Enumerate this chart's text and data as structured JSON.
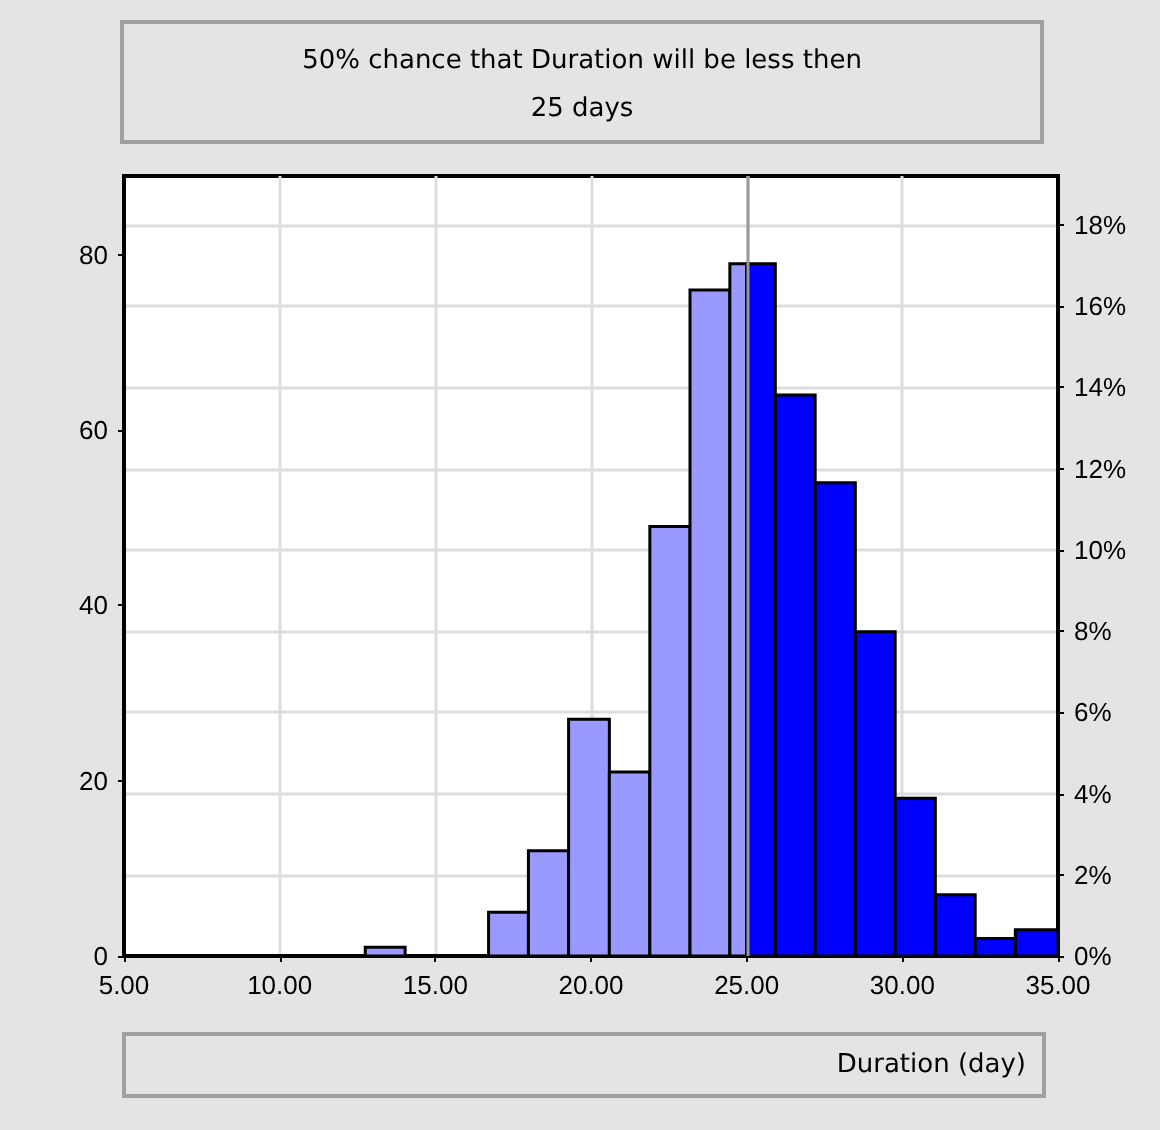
{
  "chart_data": {
    "type": "histogram",
    "title": "50% chance that Duration will be less then 25 days",
    "xlabel": "Duration (day)",
    "bins": [
      12.75,
      14.03,
      16.71,
      17.99,
      19.28,
      20.59,
      21.89,
      23.18,
      24.46,
      25.0,
      25.92,
      27.2,
      28.49,
      29.77,
      31.06,
      32.34,
      33.63,
      35.0
    ],
    "values": [
      1,
      null,
      5,
      12,
      27,
      21,
      49,
      76,
      79,
      79,
      64,
      54,
      37,
      18,
      7,
      2,
      3
    ],
    "colors": [
      "#9999ff",
      null,
      "#9999ff",
      "#9999ff",
      "#9999ff",
      "#9999ff",
      "#9999ff",
      "#9999ff",
      "#9999ff",
      "#0000ff",
      "#0000ff",
      "#0000ff",
      "#0000ff",
      "#0000ff",
      "#0000ff",
      "#0000ff",
      "#0000ff"
    ],
    "xlim": [
      5,
      35
    ],
    "xticks": [
      {
        "value": 5,
        "label": "5.00"
      },
      {
        "value": 10,
        "label": "10.00"
      },
      {
        "value": 15,
        "label": "15.00"
      },
      {
        "value": 20,
        "label": "20.00"
      },
      {
        "value": 25,
        "label": "25.00"
      },
      {
        "value": 30,
        "label": "30.00"
      },
      {
        "value": 35,
        "label": "35.00"
      }
    ],
    "ylim": [
      0,
      89
    ],
    "yticks": [
      0,
      20,
      40,
      60,
      80
    ],
    "y2lim": [
      0,
      19.2
    ],
    "y2ticks": [
      {
        "value": 0,
        "label": "0%"
      },
      {
        "value": 2,
        "label": "2%"
      },
      {
        "value": 4,
        "label": "4%"
      },
      {
        "value": 6,
        "label": "6%"
      },
      {
        "value": 8,
        "label": "8%"
      },
      {
        "value": 10,
        "label": "10%"
      },
      {
        "value": 12,
        "label": "12%"
      },
      {
        "value": 14,
        "label": "14%"
      },
      {
        "value": 16,
        "label": "16%"
      },
      {
        "value": 18,
        "label": "18%"
      }
    ],
    "ref_lines": [
      {
        "axis": "x",
        "value": 25,
        "color": "#999999"
      }
    ],
    "grid": true
  }
}
